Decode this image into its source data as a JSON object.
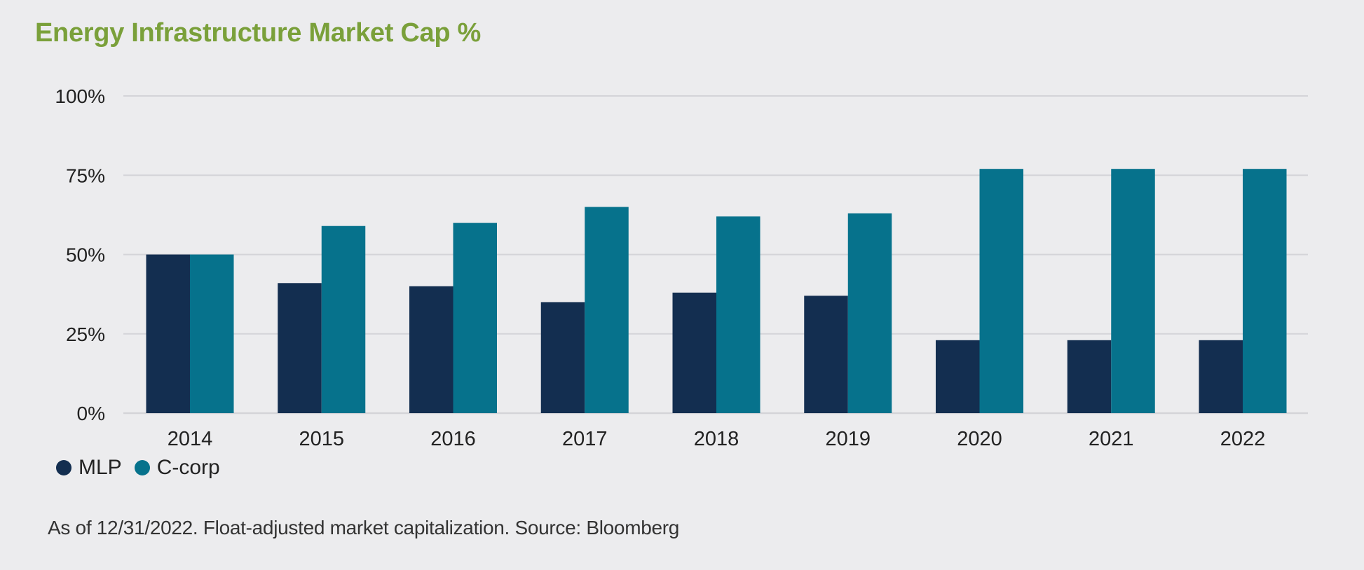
{
  "title": "Energy Infrastructure Market Cap %",
  "footnote": "As of 12/31/2022. Float-adjusted market capitalization. Source: Bloomberg",
  "colors": {
    "title": "#7aa03a",
    "mlp": "#132e50",
    "ccorp": "#06728c",
    "grid": "#d4d4d8",
    "background": "#ececee"
  },
  "chart_data": {
    "type": "bar",
    "title": "Energy Infrastructure Market Cap %",
    "xlabel": "",
    "ylabel": "",
    "categories": [
      "2014",
      "2015",
      "2016",
      "2017",
      "2018",
      "2019",
      "2020",
      "2021",
      "2022"
    ],
    "series": [
      {
        "name": "MLP",
        "color": "#132e50",
        "values": [
          50,
          41,
          40,
          35,
          38,
          37,
          23,
          23,
          23
        ]
      },
      {
        "name": "C-corp",
        "color": "#06728c",
        "values": [
          50,
          59,
          60,
          65,
          62,
          63,
          77,
          77,
          77
        ]
      }
    ],
    "ylim": [
      0,
      100
    ],
    "yticks": [
      0,
      25,
      50,
      75,
      100
    ],
    "ytick_labels": [
      "0%",
      "25%",
      "50%",
      "75%",
      "100%"
    ],
    "grid": true,
    "legend": {
      "placement": "bottom-left",
      "entries": [
        "MLP",
        "C-corp"
      ]
    }
  }
}
